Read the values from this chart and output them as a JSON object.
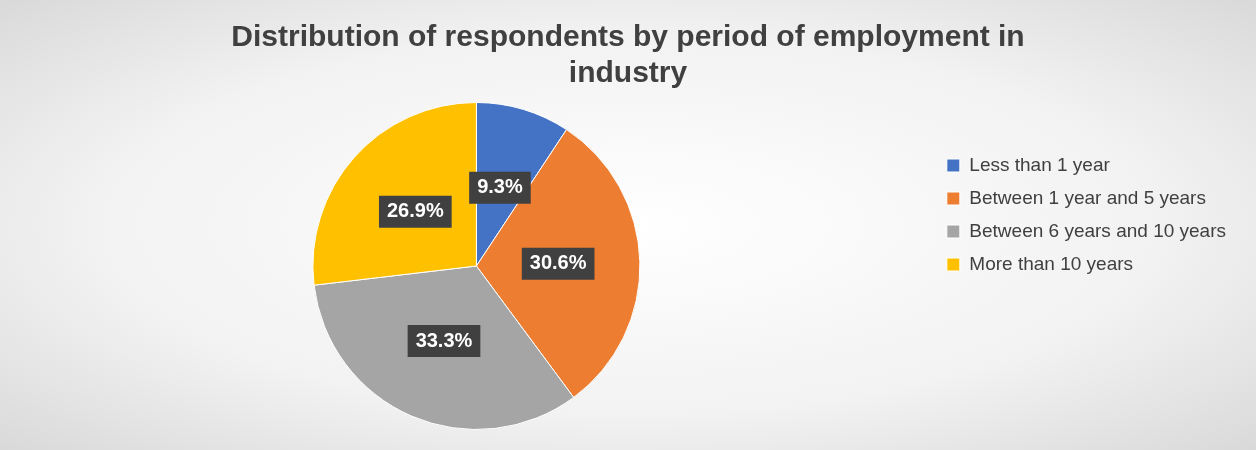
{
  "chart_data": {
    "type": "pie",
    "title": "Distribution of respondents by period of employment in industry",
    "categories": [
      "Less than 1 year",
      "Between 1 year and 5 years",
      "Between 6 years and 10 years",
      "More than 10 years"
    ],
    "values": [
      9.3,
      30.6,
      33.3,
      26.9
    ],
    "colors": [
      "#4472c4",
      "#ed7d31",
      "#a5a5a5",
      "#ffc000"
    ],
    "value_labels": [
      "9.3%",
      "30.6%",
      "33.3%",
      "26.9%"
    ],
    "legend": "right"
  }
}
